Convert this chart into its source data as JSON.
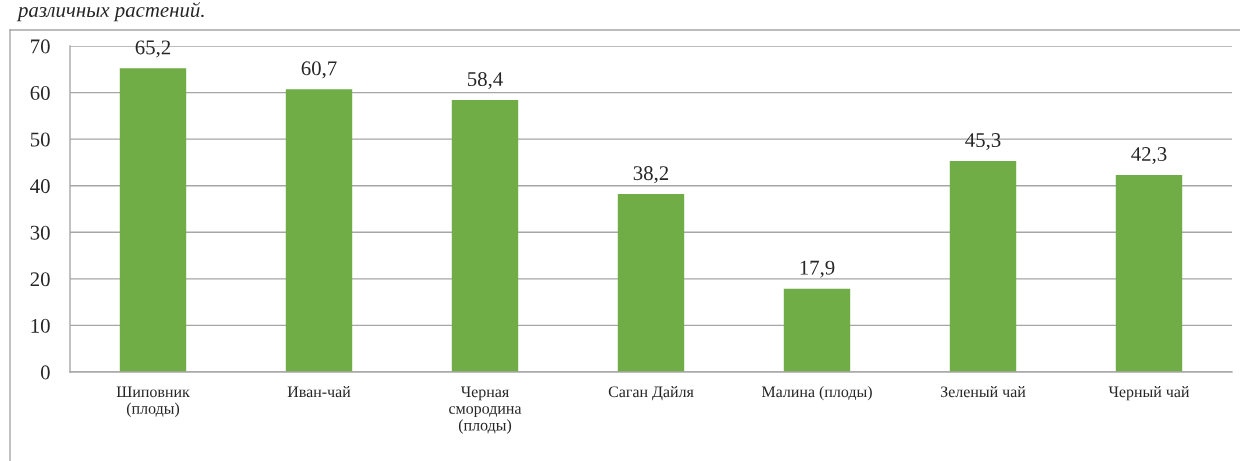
{
  "chart_data": {
    "type": "bar",
    "title": "различных растений.",
    "categories": [
      "Шиповник\n(плоды)",
      "Иван-чай",
      "Черная\nсмородина\n(плоды)",
      "Саган Дайля",
      "Малина (плоды)",
      "Зеленый чай",
      "Черный чай"
    ],
    "values": [
      65.2,
      60.7,
      58.4,
      38.2,
      17.9,
      45.3,
      42.3
    ],
    "value_labels": [
      "65,2",
      "60,7",
      "58,4",
      "38,2",
      "17,9",
      "45,3",
      "42,3"
    ],
    "color": "#70ad47",
    "ylim": [
      0,
      70
    ],
    "yticks": [
      0,
      10,
      20,
      30,
      40,
      50,
      60,
      70
    ],
    "grid": "y"
  }
}
